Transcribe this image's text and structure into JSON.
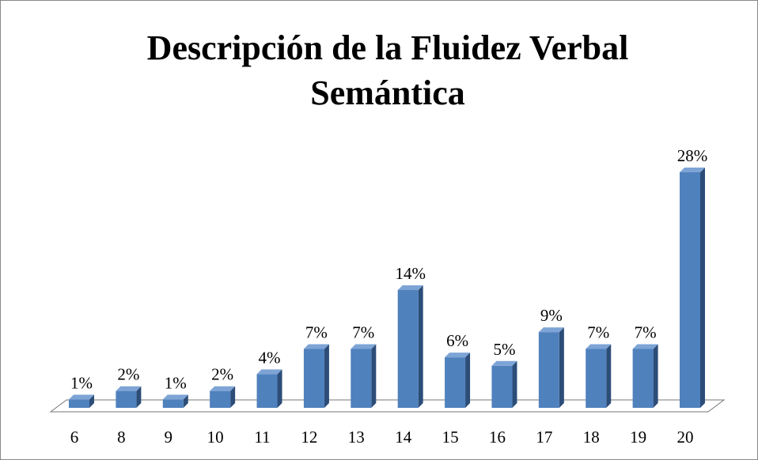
{
  "chart_data": {
    "type": "bar",
    "title": [
      "Descripción de la Fluidez Verbal",
      "Semántica"
    ],
    "categories": [
      "6",
      "8",
      "9",
      "10",
      "11",
      "12",
      "13",
      "14",
      "15",
      "16",
      "17",
      "18",
      "19",
      "20"
    ],
    "values": [
      1,
      2,
      1,
      2,
      4,
      7,
      7,
      14,
      6,
      5,
      9,
      7,
      7,
      28
    ],
    "value_labels": [
      "1%",
      "2%",
      "1%",
      "2%",
      "4%",
      "7%",
      "7%",
      "14%",
      "6%",
      "5%",
      "9%",
      "7%",
      "7%",
      "28%"
    ],
    "color": "#4f81bd"
  }
}
